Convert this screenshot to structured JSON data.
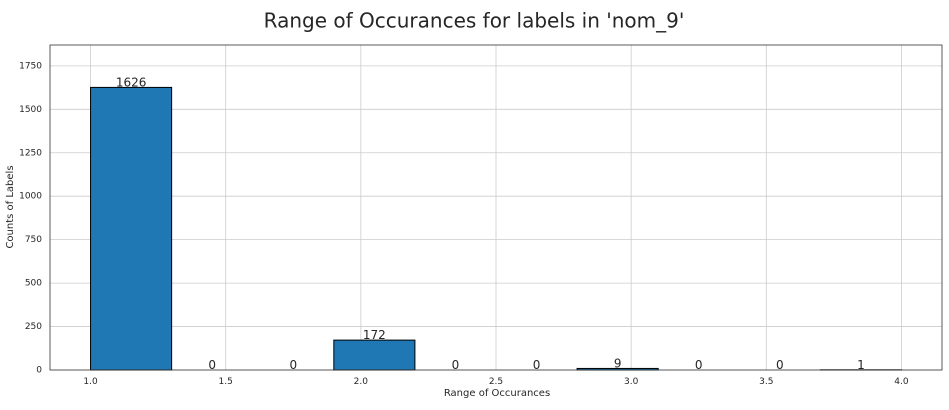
{
  "chart_data": {
    "type": "bar",
    "title": "Range of Occurances for labels in 'nom_9'",
    "xlabel": "Range of Occurances",
    "ylabel": "Counts of Labels",
    "bins": [
      {
        "start": 1.0,
        "end": 1.3,
        "value": 1626,
        "label": "1626"
      },
      {
        "start": 1.3,
        "end": 1.6,
        "value": 0,
        "label": "0"
      },
      {
        "start": 1.6,
        "end": 1.9,
        "value": 0,
        "label": "0"
      },
      {
        "start": 1.9,
        "end": 2.2,
        "value": 172,
        "label": "172"
      },
      {
        "start": 2.2,
        "end": 2.5,
        "value": 0,
        "label": "0"
      },
      {
        "start": 2.5,
        "end": 2.8,
        "value": 0,
        "label": "0"
      },
      {
        "start": 2.8,
        "end": 3.1,
        "value": 9,
        "label": "9"
      },
      {
        "start": 3.1,
        "end": 3.4,
        "value": 0,
        "label": "0"
      },
      {
        "start": 3.4,
        "end": 3.7,
        "value": 0,
        "label": "0"
      },
      {
        "start": 3.7,
        "end": 4.0,
        "value": 1,
        "label": "1"
      }
    ],
    "xlim": [
      0.85,
      4.15
    ],
    "ylim": [
      0,
      1870
    ],
    "xticks": [
      1.0,
      1.5,
      2.0,
      2.5,
      3.0,
      3.5,
      4.0
    ],
    "xtick_labels": [
      "1.0",
      "1.5",
      "2.0",
      "2.5",
      "3.0",
      "3.5",
      "4.0"
    ],
    "yticks": [
      0,
      250,
      500,
      750,
      1000,
      1250,
      1500,
      1750
    ],
    "ytick_labels": [
      "0",
      "250",
      "500",
      "750",
      "1000",
      "1250",
      "1500",
      "1750"
    ],
    "grid": true,
    "colors": {
      "bar": "#1f77b4",
      "edge": "#000000",
      "grid": "#cccccc",
      "spine": "#333333",
      "text": "#262626"
    }
  }
}
